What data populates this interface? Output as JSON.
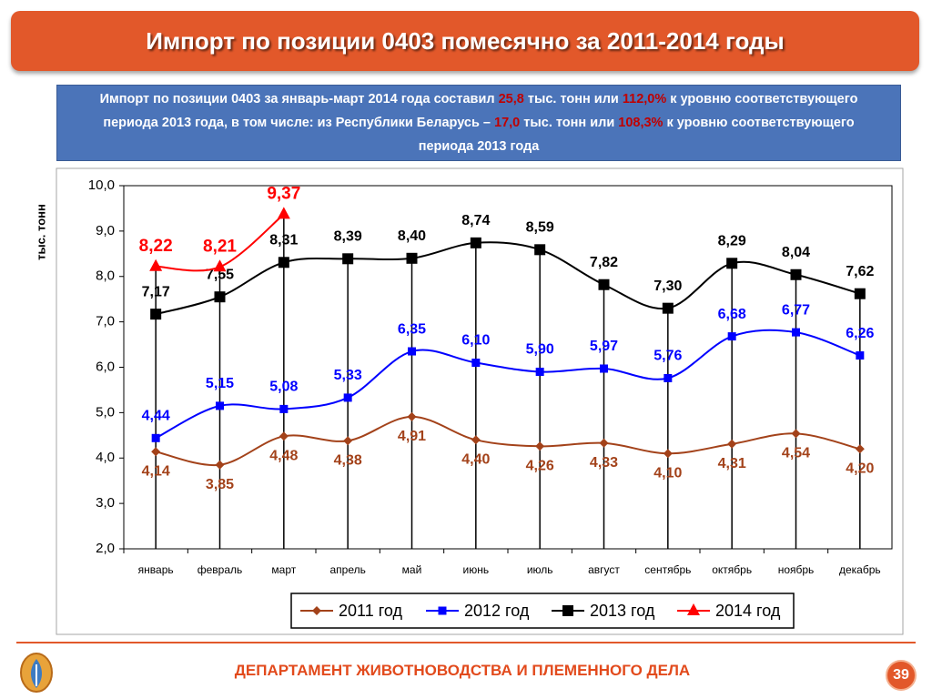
{
  "header": {
    "title": "Импорт по позиции 0403 помесячно за 2011-2014 годы"
  },
  "summary": [
    {
      "text": "Импорт по позиции 0403 за январь-март 2014 года составил ",
      "color": "#ffffff"
    },
    {
      "text": "25,8",
      "color": "#c00000"
    },
    {
      "text": " тыс. тонн или ",
      "color": "#ffffff"
    },
    {
      "text": "112,0%",
      "color": "#c00000"
    },
    {
      "text": " к уровню соответствующего периода 2013 года, в том числе: из Республики Беларусь – ",
      "color": "#ffffff"
    },
    {
      "text": "17,0",
      "color": "#c00000"
    },
    {
      "text": " тыс. тонн или ",
      "color": "#ffffff"
    },
    {
      "text": "108,3%",
      "color": "#c00000"
    },
    {
      "text": " к уровню соответствующего периода 2013 года",
      "color": "#ffffff"
    }
  ],
  "chart_data": {
    "type": "line",
    "y_label": "тыс. тонн",
    "categories": [
      "январь",
      "февраль",
      "март",
      "апрель",
      "май",
      "июнь",
      "июль",
      "август",
      "сентябрь",
      "октябрь",
      "ноябрь",
      "декабрь"
    ],
    "ylim": [
      2,
      10
    ],
    "yticks": [
      {
        "value": 2,
        "label": "2,0"
      },
      {
        "value": 3,
        "label": "3,0"
      },
      {
        "value": 4,
        "label": "4,0"
      },
      {
        "value": 5,
        "label": "5,0"
      },
      {
        "value": 6,
        "label": "6,0"
      },
      {
        "value": 7,
        "label": "7,0"
      },
      {
        "value": 8,
        "label": "8,0"
      },
      {
        "value": 9,
        "label": "9,0"
      },
      {
        "value": 10,
        "label": "10,0"
      }
    ],
    "legend": "bottom",
    "series": [
      {
        "name": "2011 год",
        "color": "#a3421a",
        "marker": "diamond",
        "label_position": "below",
        "values": [
          4.14,
          3.85,
          4.48,
          4.38,
          4.91,
          4.4,
          4.26,
          4.33,
          4.1,
          4.31,
          4.54,
          4.2
        ],
        "value_labels": [
          "4,14",
          "3,85",
          "4,48",
          "4,38",
          "4,91",
          "4,40",
          "4,26",
          "4,33",
          "4,10",
          "4,31",
          "4,54",
          "4,20"
        ]
      },
      {
        "name": "2012 год",
        "color": "#0000ff",
        "marker": "square",
        "label_position": "above",
        "values": [
          4.44,
          5.15,
          5.08,
          5.33,
          6.35,
          6.1,
          5.9,
          5.97,
          5.76,
          6.68,
          6.77,
          6.26
        ],
        "value_labels": [
          "4,44",
          "5,15",
          "5,08",
          "5,33",
          "6,35",
          "6,10",
          "5,90",
          "5,97",
          "5,76",
          "6,68",
          "6,77",
          "6,26"
        ]
      },
      {
        "name": "2013 год",
        "color": "#000000",
        "marker": "square",
        "label_position": "above",
        "values": [
          7.17,
          7.55,
          8.31,
          8.39,
          8.4,
          8.74,
          8.59,
          7.82,
          7.3,
          8.29,
          8.04,
          7.62
        ],
        "value_labels": [
          "7,17",
          "7,55",
          "8,31",
          "8,39",
          "8,40",
          "8,74",
          "8,59",
          "7,82",
          "7,30",
          "8,29",
          "8,04",
          "7,62"
        ]
      },
      {
        "name": "2014 год",
        "color": "#ff0000",
        "marker": "triangle",
        "label_position": "above",
        "values": [
          8.22,
          8.21,
          9.37,
          null,
          null,
          null,
          null,
          null,
          null,
          null,
          null,
          null
        ],
        "value_labels": [
          "8,22",
          "8,21",
          "9,37",
          null,
          null,
          null,
          null,
          null,
          null,
          null,
          null,
          null
        ]
      }
    ]
  },
  "footer": "ДЕПАРТАМЕНТ ЖИВОТНОВОДСТВА И ПЛЕМЕННОГО ДЕЛА",
  "page_number": "39"
}
